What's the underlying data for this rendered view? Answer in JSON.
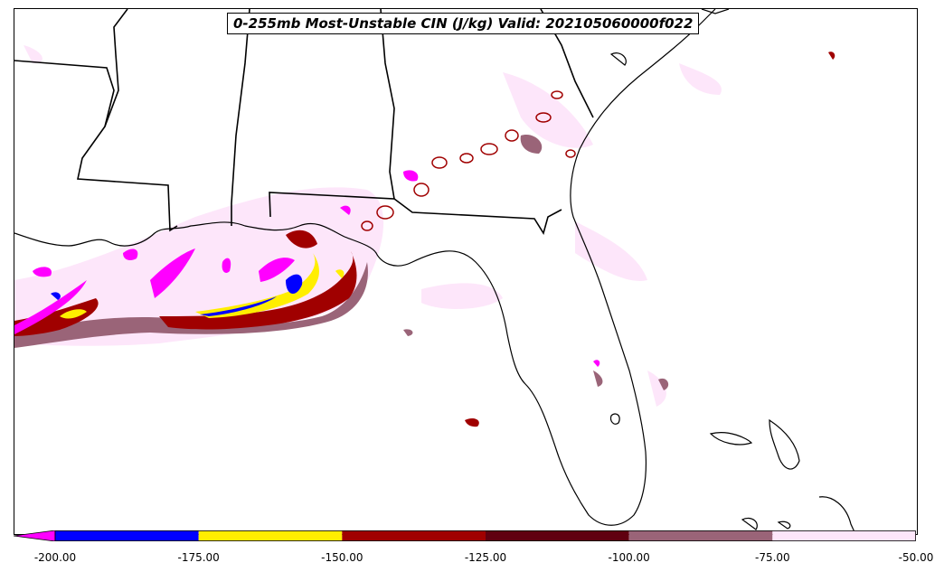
{
  "map": {
    "title": "0-255mb Most-Unstable CIN (J/kg) Valid: 202105060000f022",
    "colors": {
      "land_outline": "#000000",
      "background": "#ffffff",
      "cin_below_200": "#ff00ff",
      "cin_200_175": "#0000ff",
      "cin_175_150": "#ffee00",
      "cin_150_125": "#a00000",
      "cin_125_100": "#600010",
      "cin_100_75": "#9a6478",
      "cin_75_50": "#fde6fa"
    }
  },
  "colorbar": {
    "extend": "min",
    "bins": [
      {
        "from": -200,
        "to": -175,
        "color": "#0000ff"
      },
      {
        "from": -175,
        "to": -150,
        "color": "#ffee00"
      },
      {
        "from": -150,
        "to": -125,
        "color": "#a00000"
      },
      {
        "from": -125,
        "to": -100,
        "color": "#600010"
      },
      {
        "from": -100,
        "to": -75,
        "color": "#9a6478"
      },
      {
        "from": -75,
        "to": -50,
        "color": "#fde6fa"
      }
    ],
    "extend_color": "#ff00ff",
    "ticks": [
      "-200.00",
      "-175.00",
      "-150.00",
      "-125.00",
      "-100.00",
      "-75.00",
      "-50.00"
    ]
  }
}
